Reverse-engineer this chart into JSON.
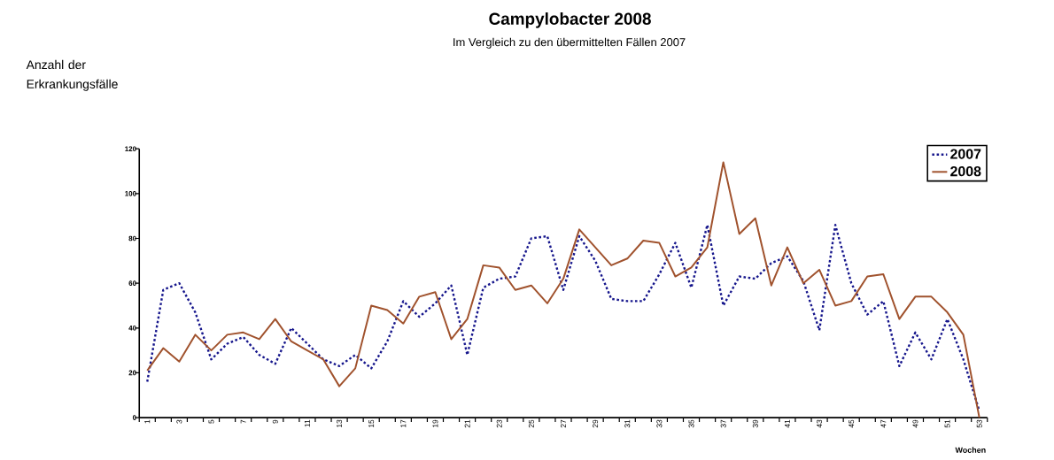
{
  "chart_data": {
    "type": "line",
    "title": "Campylobacter 2008",
    "subtitle": "Im Vergleich zu den übermittelten Fällen 2007",
    "ylabel": "Anzahl der Erkrankungsfälle",
    "xlabel": "Wochen",
    "categories": [
      "1",
      null,
      "3",
      null,
      "5",
      null,
      "7",
      null,
      "9",
      null,
      "11",
      null,
      "13",
      null,
      "15",
      null,
      "17",
      null,
      "19",
      null,
      "21",
      null,
      "23",
      null,
      "25",
      null,
      "27",
      null,
      "29",
      null,
      "31",
      null,
      "33",
      null,
      "35",
      null,
      "37",
      null,
      "39",
      null,
      "41",
      null,
      "43",
      null,
      "45",
      null,
      "47",
      null,
      "49",
      null,
      "51",
      null,
      "53"
    ],
    "ylim": [
      0,
      120
    ],
    "yticks": [
      0,
      20,
      40,
      60,
      80,
      100,
      120
    ],
    "grid": false,
    "legend": "top right",
    "marker": "none",
    "series": [
      {
        "name": "2007",
        "color": "#16168c",
        "line_style": "dotted",
        "values": [
          16,
          57,
          60,
          47,
          26,
          33,
          36,
          28,
          24,
          40,
          33,
          26,
          23,
          28,
          22,
          34,
          52,
          45,
          51,
          59,
          28,
          58,
          62,
          63,
          80,
          81,
          57,
          81,
          70,
          53,
          52,
          52,
          64,
          78,
          58,
          86,
          50,
          63,
          62,
          69,
          72,
          61,
          39,
          86,
          60,
          46,
          52,
          23,
          38,
          26,
          44,
          26,
          3
        ]
      },
      {
        "name": "2008",
        "color": "#a0522d",
        "line_style": "solid",
        "values": [
          21,
          31,
          25,
          37,
          30,
          37,
          38,
          35,
          44,
          34,
          30,
          26,
          14,
          22,
          50,
          48,
          42,
          54,
          56,
          35,
          44,
          68,
          67,
          57,
          59,
          51,
          62,
          84,
          76,
          68,
          71,
          79,
          78,
          63,
          67,
          76,
          114,
          82,
          89,
          59,
          76,
          60,
          66,
          50,
          52,
          63,
          64,
          44,
          54,
          54,
          47,
          37,
          0
        ]
      }
    ]
  }
}
